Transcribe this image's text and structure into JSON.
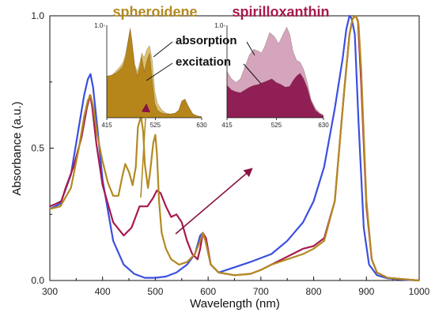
{
  "chart_data": [
    {
      "type": "line",
      "xlabel": "Wavelength (nm)",
      "ylabel": "Absorbance (a.u.)",
      "xlim": [
        300,
        1000
      ],
      "ylim": [
        0,
        1.0
      ],
      "xticks": [
        "300",
        "400",
        "500",
        "600",
        "700",
        "800",
        "900",
        "1000"
      ],
      "yticks": [
        "0.0",
        "0.5",
        "1.0"
      ],
      "grid": false,
      "series": [
        {
          "color": "#3b4fe0",
          "x": [
            300,
            320,
            340,
            355,
            365,
            372,
            377,
            382,
            390,
            400,
            420,
            440,
            460,
            480,
            500,
            520,
            540,
            560,
            575,
            585,
            590,
            595,
            605,
            620,
            650,
            680,
            700,
            720,
            750,
            780,
            800,
            820,
            840,
            855,
            862,
            868,
            872,
            878,
            885,
            895,
            905,
            920,
            940,
            970,
            1000
          ],
          "y": [
            0.27,
            0.29,
            0.4,
            0.58,
            0.7,
            0.76,
            0.78,
            0.73,
            0.58,
            0.38,
            0.15,
            0.06,
            0.025,
            0.01,
            0.01,
            0.015,
            0.03,
            0.06,
            0.1,
            0.17,
            0.18,
            0.15,
            0.06,
            0.03,
            0.05,
            0.07,
            0.085,
            0.1,
            0.15,
            0.22,
            0.3,
            0.43,
            0.65,
            0.84,
            0.95,
            1.0,
            0.99,
            0.93,
            0.6,
            0.2,
            0.06,
            0.02,
            0.008,
            0.003,
            0.0
          ]
        },
        {
          "color": "#a81a4e",
          "x": [
            300,
            312,
            322,
            330,
            345,
            360,
            370,
            376,
            380,
            388,
            400,
            420,
            440,
            455,
            470,
            485,
            495,
            503,
            510,
            520,
            530,
            540,
            550,
            560,
            570,
            580,
            585,
            590,
            596,
            605,
            620,
            650,
            680,
            700,
            720,
            740,
            760,
            780,
            800,
            820,
            840,
            858,
            868,
            874,
            880,
            884,
            890,
            900,
            910,
            920,
            940,
            970,
            1000
          ],
          "y": [
            0.28,
            0.29,
            0.3,
            0.35,
            0.43,
            0.54,
            0.65,
            0.7,
            0.66,
            0.52,
            0.36,
            0.22,
            0.17,
            0.2,
            0.28,
            0.28,
            0.31,
            0.34,
            0.33,
            0.28,
            0.24,
            0.25,
            0.22,
            0.15,
            0.1,
            0.08,
            0.12,
            0.18,
            0.16,
            0.06,
            0.03,
            0.02,
            0.025,
            0.04,
            0.06,
            0.08,
            0.1,
            0.12,
            0.13,
            0.16,
            0.3,
            0.72,
            0.93,
            0.99,
            1.0,
            0.98,
            0.75,
            0.28,
            0.08,
            0.03,
            0.01,
            0.005,
            0.0
          ]
        },
        {
          "color": "#b38a22",
          "x": [
            300,
            320,
            340,
            355,
            365,
            372,
            377,
            382,
            390,
            400,
            410,
            420,
            430,
            437,
            443,
            450,
            457,
            463,
            467,
            473,
            477,
            480,
            486,
            490,
            496,
            500,
            503,
            507,
            512,
            520,
            530,
            545,
            560,
            575,
            585,
            590,
            595,
            605,
            620,
            650,
            680,
            700,
            720,
            750,
            780,
            800,
            820,
            840,
            858,
            868,
            874,
            880,
            885,
            890,
            900,
            910,
            920,
            940,
            970,
            1000
          ],
          "y": [
            0.27,
            0.28,
            0.35,
            0.5,
            0.62,
            0.68,
            0.7,
            0.66,
            0.55,
            0.45,
            0.37,
            0.32,
            0.32,
            0.39,
            0.44,
            0.41,
            0.36,
            0.43,
            0.58,
            0.62,
            0.56,
            0.44,
            0.35,
            0.41,
            0.52,
            0.55,
            0.48,
            0.3,
            0.18,
            0.12,
            0.08,
            0.06,
            0.07,
            0.1,
            0.15,
            0.18,
            0.15,
            0.06,
            0.03,
            0.02,
            0.025,
            0.04,
            0.06,
            0.08,
            0.1,
            0.12,
            0.15,
            0.3,
            0.72,
            0.93,
            0.99,
            1.0,
            0.97,
            0.8,
            0.3,
            0.08,
            0.03,
            0.01,
            0.005,
            0.0
          ]
        }
      ]
    },
    {
      "type": "area",
      "title": "spheroidene",
      "title_color": "#b38a22",
      "xlim": [
        415,
        630
      ],
      "ylim": [
        0,
        1.0
      ],
      "xticks": [
        "415",
        "525",
        "630"
      ],
      "yticks": [
        "1.0-"
      ],
      "series": [
        {
          "color": "#dcc270",
          "x": [
            415,
            425,
            435,
            445,
            452,
            458,
            462,
            468,
            472,
            478,
            484,
            490,
            494,
            500,
            506,
            512,
            518,
            524,
            530,
            540,
            550,
            560,
            570,
            578,
            585,
            592,
            600,
            610,
            620,
            630
          ],
          "y": [
            0.4,
            0.45,
            0.5,
            0.55,
            0.6,
            0.7,
            0.8,
            0.96,
            0.82,
            0.58,
            0.5,
            0.6,
            0.7,
            0.65,
            0.74,
            0.78,
            0.62,
            0.28,
            0.15,
            0.08,
            0.05,
            0.04,
            0.05,
            0.08,
            0.18,
            0.2,
            0.12,
            0.04,
            0.02,
            0.01
          ]
        },
        {
          "color": "#b6861a",
          "x": [
            415,
            425,
            435,
            445,
            452,
            458,
            462,
            468,
            472,
            478,
            484,
            490,
            494,
            500,
            506,
            512,
            518,
            524,
            530,
            540,
            550,
            560,
            570,
            578,
            585,
            592,
            600,
            610,
            620,
            630
          ],
          "y": [
            0.45,
            0.46,
            0.48,
            0.52,
            0.56,
            0.66,
            0.78,
            0.97,
            0.84,
            0.56,
            0.45,
            0.55,
            0.66,
            0.5,
            0.62,
            0.7,
            0.4,
            0.15,
            0.08,
            0.05,
            0.04,
            0.04,
            0.05,
            0.08,
            0.18,
            0.2,
            0.12,
            0.04,
            0.02,
            0.01
          ]
        }
      ]
    },
    {
      "type": "area",
      "title": "spirilloxanthin",
      "title_color": "#a81a4e",
      "xlim": [
        415,
        630
      ],
      "ylim": [
        0,
        1.0
      ],
      "xticks": [
        "415",
        "525",
        "630"
      ],
      "yticks": [
        "1.0-"
      ],
      "series": [
        {
          "color": "#d5a5bd",
          "x": [
            415,
            425,
            435,
            445,
            455,
            465,
            475,
            485,
            492,
            500,
            510,
            520,
            530,
            540,
            548,
            555,
            562,
            570,
            578,
            586,
            594,
            602,
            612,
            622,
            630
          ],
          "y": [
            0.5,
            0.42,
            0.38,
            0.42,
            0.55,
            0.68,
            0.74,
            0.72,
            0.7,
            0.78,
            0.92,
            0.88,
            0.8,
            0.9,
            0.98,
            0.9,
            0.72,
            0.62,
            0.6,
            0.52,
            0.38,
            0.2,
            0.1,
            0.05,
            0.03
          ]
        },
        {
          "color": "#8f1f55",
          "x": [
            415,
            425,
            435,
            445,
            455,
            465,
            475,
            485,
            495,
            505,
            515,
            525,
            535,
            545,
            555,
            562,
            570,
            578,
            586,
            594,
            602,
            612,
            622,
            630
          ],
          "y": [
            0.35,
            0.3,
            0.28,
            0.27,
            0.3,
            0.33,
            0.35,
            0.36,
            0.38,
            0.4,
            0.42,
            0.38,
            0.36,
            0.33,
            0.34,
            0.4,
            0.45,
            0.48,
            0.42,
            0.32,
            0.18,
            0.08,
            0.04,
            0.02
          ]
        }
      ]
    }
  ],
  "annotations": {
    "absorption": "absorption",
    "excitation": "excitation"
  }
}
